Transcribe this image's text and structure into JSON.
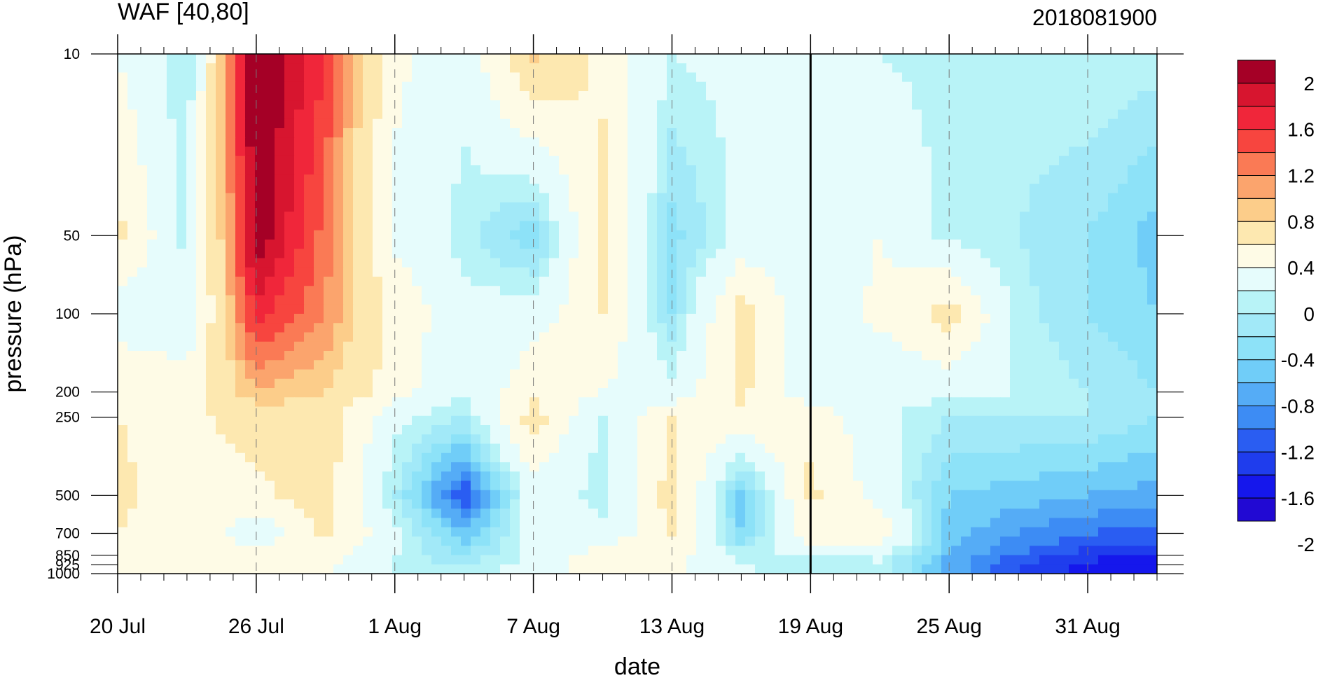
{
  "chart_data": {
    "type": "heatmap",
    "subtype": "filled-contour",
    "title": "WAF [40,80]",
    "right_title": "2018081900",
    "xlabel": "date",
    "ylabel": "pressure (hPa)",
    "y_scale": "log",
    "y_reversed": true,
    "x_range": [
      "2018-07-20",
      "2018-09-03"
    ],
    "y_range": [
      1000,
      10
    ],
    "x_ticks": [
      {
        "date": "2018-07-20",
        "label": "20 Jul"
      },
      {
        "date": "2018-07-26",
        "label": "26 Jul"
      },
      {
        "date": "2018-08-01",
        "label": "1 Aug"
      },
      {
        "date": "2018-08-07",
        "label": "7 Aug"
      },
      {
        "date": "2018-08-13",
        "label": "13 Aug"
      },
      {
        "date": "2018-08-19",
        "label": "19 Aug"
      },
      {
        "date": "2018-08-25",
        "label": "25 Aug"
      },
      {
        "date": "2018-08-31",
        "label": "31 Aug"
      }
    ],
    "y_levels": [
      1000,
      925,
      850,
      700,
      500,
      250,
      200,
      100,
      50,
      10
    ],
    "y_tick_labels": [
      "10",
      "50",
      "100",
      "200",
      "250",
      "500",
      "700",
      "850",
      "925",
      "1000"
    ],
    "current_date_line": "2018-08-19",
    "dashed_gridlines": true,
    "legend_position": "right",
    "colorbar": {
      "labels": [
        "2",
        "1.6",
        "1.2",
        "0.8",
        "0.4",
        "0",
        "-0.4",
        "-0.8",
        "-1.2",
        "-1.6",
        "-2"
      ],
      "colors": [
        "#a50026",
        "#d7152f",
        "#f0263a",
        "#f7453f",
        "#fa7a55",
        "#fba46d",
        "#fccd8a",
        "#fde8b0",
        "#fefbe6",
        "#e6fcfc",
        "#b8f3f7",
        "#a2e9f8",
        "#8de2f8",
        "#70cdf8",
        "#55acf6",
        "#3d8cf4",
        "#2a5df2",
        "#1f3ded",
        "#1517ec",
        "#2109d3"
      ],
      "levels": [
        2.2,
        2.0,
        1.8,
        1.6,
        1.4,
        1.2,
        1.0,
        0.8,
        0.4,
        0.0,
        -0.4,
        -0.6,
        -0.8,
        -1.0,
        -1.2,
        -1.4,
        -1.6,
        -1.8,
        -2.0,
        -2.2
      ]
    },
    "values": {
      "x_dates": [
        "2018-07-20",
        "2018-07-23",
        "2018-07-26",
        "2018-07-29",
        "2018-08-01",
        "2018-08-04",
        "2018-08-07",
        "2018-08-10",
        "2018-08-13",
        "2018-08-16",
        "2018-08-19",
        "2018-08-22",
        "2018-08-25",
        "2018-08-28",
        "2018-08-31",
        "2018-09-03"
      ],
      "p_levels": [
        10,
        50,
        100,
        200,
        250,
        500,
        700,
        850,
        925,
        1000
      ],
      "z": [
        [
          0.0,
          -0.6,
          2.3,
          1.6,
          0.1,
          -0.3,
          0.9,
          0.3,
          -0.4,
          -0.3,
          -0.3,
          -0.4,
          -0.5,
          -0.5,
          -0.4,
          -0.5
        ],
        [
          0.5,
          -0.5,
          2.2,
          1.3,
          -0.1,
          -0.5,
          -1.0,
          0.6,
          -0.9,
          -0.3,
          -0.3,
          0.0,
          -0.5,
          -0.6,
          -0.8,
          -1.1
        ],
        [
          -0.2,
          -0.3,
          1.7,
          1.2,
          0.3,
          -0.3,
          -0.2,
          0.4,
          -0.8,
          0.6,
          -0.3,
          0.1,
          0.6,
          -0.5,
          -0.8,
          -1.0
        ],
        [
          0.3,
          0.2,
          1.0,
          0.8,
          0.2,
          -0.4,
          0.3,
          0.0,
          -0.3,
          0.5,
          -0.3,
          -0.4,
          -0.3,
          -0.4,
          -0.6,
          -0.8
        ],
        [
          0.4,
          0.3,
          0.6,
          0.6,
          -0.3,
          -0.6,
          0.6,
          -0.5,
          0.4,
          0.3,
          0.3,
          -0.3,
          -0.6,
          -0.6,
          -0.6,
          -0.8
        ],
        [
          0.5,
          0.1,
          0.3,
          0.6,
          -0.6,
          -1.8,
          -0.2,
          -0.5,
          0.6,
          -1.1,
          0.5,
          -0.2,
          -1.0,
          -1.1,
          -1.2,
          -1.3
        ],
        [
          0.4,
          0.3,
          -0.3,
          0.5,
          -0.3,
          -1.2,
          -0.2,
          -0.3,
          0.4,
          -1.0,
          0.2,
          0.3,
          -1.1,
          -1.4,
          -1.6,
          -1.7
        ],
        [
          0.3,
          0.2,
          0.2,
          0.2,
          -0.4,
          -0.8,
          -0.3,
          0.2,
          0.2,
          -0.5,
          -0.3,
          -0.3,
          -1.2,
          -1.6,
          -1.9,
          -2.0
        ],
        [
          0.2,
          0.1,
          0.2,
          0.1,
          -0.5,
          -0.6,
          -0.3,
          0.3,
          0.1,
          -0.4,
          -0.6,
          -0.5,
          -1.3,
          -1.8,
          -2.1,
          -2.1
        ],
        [
          0.1,
          0.1,
          0.1,
          0.1,
          -0.4,
          -0.5,
          -0.2,
          0.2,
          0.1,
          -0.3,
          -0.5,
          -0.5,
          -1.2,
          -1.8,
          -2.1,
          -2.1
        ]
      ]
    }
  }
}
